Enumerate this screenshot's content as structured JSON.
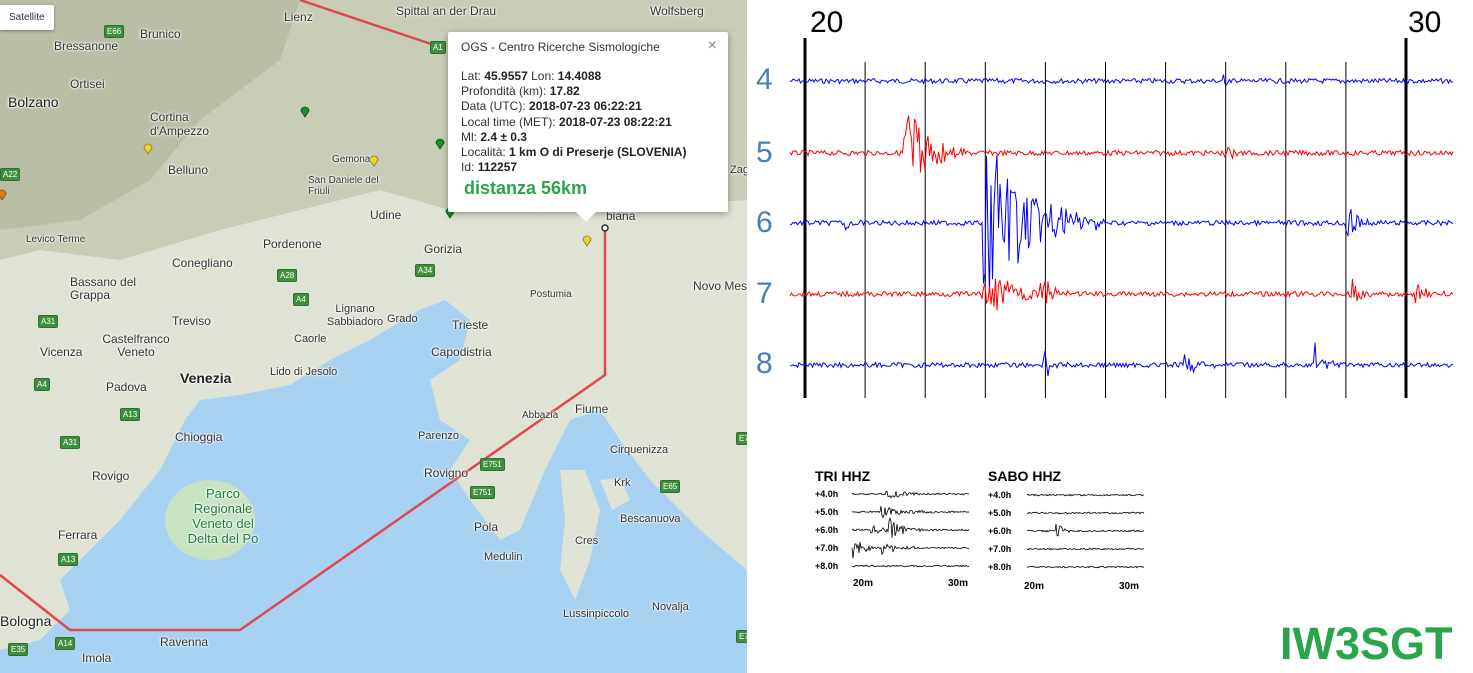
{
  "map": {
    "satellite_label": "Satellite",
    "places": [
      {
        "id": "lienz",
        "text": "Lienz"
      },
      {
        "id": "spittal",
        "text": "Spittal an der Drau"
      },
      {
        "id": "wolfsberg",
        "text": "Wolfsberg"
      },
      {
        "id": "brunico",
        "text": "Brunico"
      },
      {
        "id": "bressanone",
        "text": "Bressanone"
      },
      {
        "id": "bolzano",
        "text": "Bolzano"
      },
      {
        "id": "ortisei",
        "text": "Ortisei"
      },
      {
        "id": "cortina",
        "text": "Cortina d'Ampezzo"
      },
      {
        "id": "belluno",
        "text": "Belluno"
      },
      {
        "id": "gemona",
        "text": "Gemona"
      },
      {
        "id": "sandaniele",
        "text": "San Daniele del Friuli"
      },
      {
        "id": "udine",
        "text": "Udine"
      },
      {
        "id": "pordenone",
        "text": "Pordenone"
      },
      {
        "id": "conegliano",
        "text": "Conegliano"
      },
      {
        "id": "levico",
        "text": "Levico Terme"
      },
      {
        "id": "bassano",
        "text": "Bassano del Grappa"
      },
      {
        "id": "gorizia",
        "text": "Gorizia"
      },
      {
        "id": "lubiana",
        "text": "biana"
      },
      {
        "id": "novomesto",
        "text": "Novo Mes"
      },
      {
        "id": "postumia",
        "text": "Postumia"
      },
      {
        "id": "trieste",
        "text": "Trieste"
      },
      {
        "id": "capodistria",
        "text": "Capodistria"
      },
      {
        "id": "lignano",
        "text": "Lignano Sabbiadoro"
      },
      {
        "id": "grado",
        "text": "Grado"
      },
      {
        "id": "caorle",
        "text": "Caorle"
      },
      {
        "id": "treviso",
        "text": "Treviso"
      },
      {
        "id": "castelfranco",
        "text": "Castelfranco Veneto"
      },
      {
        "id": "vicenza",
        "text": "Vicenza"
      },
      {
        "id": "padova",
        "text": "Padova"
      },
      {
        "id": "venezia",
        "text": "Venezia"
      },
      {
        "id": "lidojesolo",
        "text": "Lido di Jesolo"
      },
      {
        "id": "chioggia",
        "text": "Chioggia"
      },
      {
        "id": "rovigo",
        "text": "Rovigo"
      },
      {
        "id": "ferrara",
        "text": "Ferrara"
      },
      {
        "id": "bologna",
        "text": "Bologna"
      },
      {
        "id": "ravenna",
        "text": "Ravenna"
      },
      {
        "id": "imola",
        "text": "Imola"
      },
      {
        "id": "abbazia",
        "text": "Abbazia"
      },
      {
        "id": "fiume",
        "text": "Fiume"
      },
      {
        "id": "parenzo",
        "text": "Parenzo"
      },
      {
        "id": "rovigno",
        "text": "Rovigno"
      },
      {
        "id": "pola",
        "text": "Pola"
      },
      {
        "id": "medulin",
        "text": "Medulin"
      },
      {
        "id": "cres",
        "text": "Cres"
      },
      {
        "id": "krk",
        "text": "Krk"
      },
      {
        "id": "cirquenizza",
        "text": "Cirquenizza"
      },
      {
        "id": "bescanuova",
        "text": "Bescanuova"
      },
      {
        "id": "lussinpiccolo",
        "text": "Lussinpiccolo"
      },
      {
        "id": "novalja",
        "text": "Novalja"
      },
      {
        "id": "zagab",
        "text": "Zag"
      }
    ],
    "park_label": "Parco Regionale Veneto del Delta del Po",
    "roads": [
      "E66",
      "A22",
      "A28",
      "A4",
      "A34",
      "A31",
      "A4",
      "A13",
      "A31",
      "A13",
      "A14",
      "E35",
      "E751",
      "E751",
      "E65",
      "A1",
      "E7",
      "E7"
    ],
    "popup": {
      "title": "OGS - Centro Ricerche Sismologiche",
      "close_glyph": "×",
      "lat_label": "Lat:",
      "lat": "45.9557",
      "lon_label": "Lon:",
      "lon": "14.4088",
      "depth_label": "Profondità (km):",
      "depth": "17.82",
      "utc_label": "Data (UTC):",
      "utc": "2018-07-23 06:22:21",
      "local_label": "Local time (MET):",
      "local": "2018-07-23 08:22:21",
      "ml_label": "Ml:",
      "ml": "2.4 ± 0.3",
      "loc_label": "Località:",
      "loc": "1 km O di Preserje (SLOVENIA)",
      "id_label": "Id:",
      "id": "112257",
      "distance": "distanza 56km"
    }
  },
  "seismogram": {
    "minute_labels": [
      "20",
      "30"
    ],
    "hours": [
      "4",
      "5",
      "6",
      "7",
      "8"
    ],
    "trace_colors": [
      "#0000ff",
      "#ff0000",
      "#0000ff",
      "#ff0000",
      "#0000ff"
    ]
  },
  "mini_plots": [
    {
      "title": "TRI HHZ",
      "rows": [
        "+4.0h",
        "+5.0h",
        "+6.0h",
        "+7.0h",
        "+8.0h"
      ],
      "x_labels": [
        "20m",
        "30m"
      ]
    },
    {
      "title": "SABO HHZ",
      "rows": [
        "+4.0h",
        "+5.0h",
        "+6.0h",
        "+7.0h",
        "+8.0h"
      ],
      "x_labels": [
        "20m",
        "30m"
      ]
    }
  ],
  "callsign": "IW3SGT"
}
